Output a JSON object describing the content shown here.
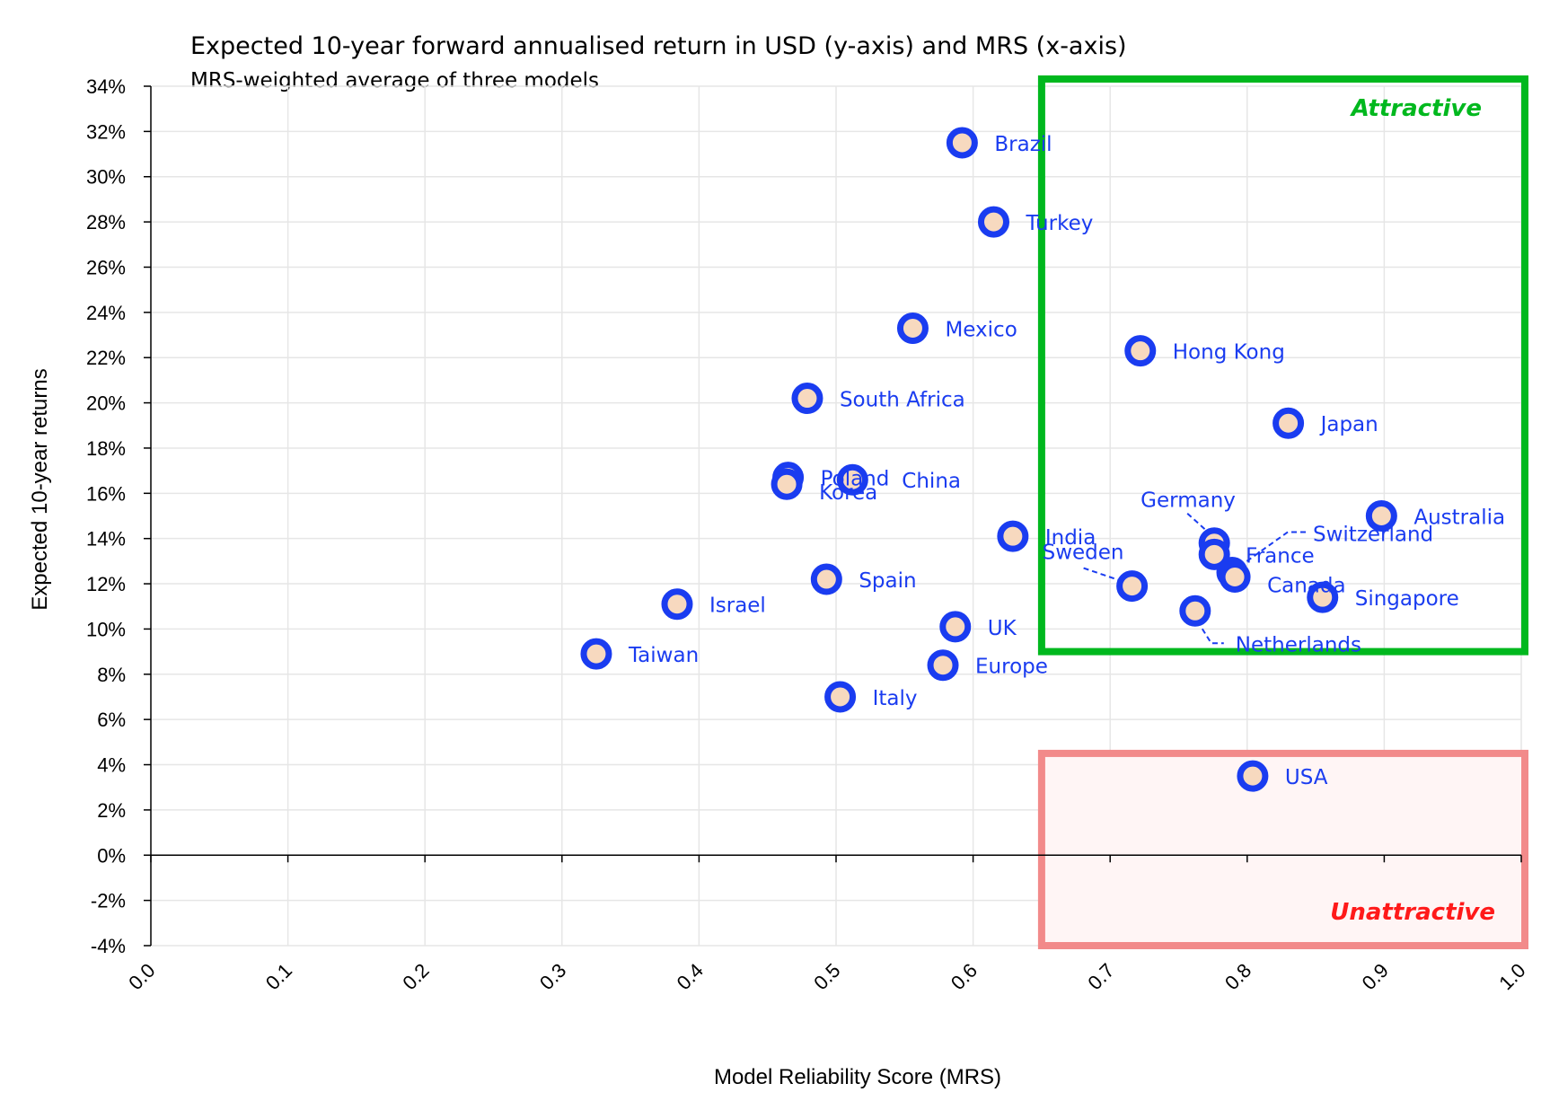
{
  "chart_data": {
    "type": "scatter",
    "title": "Expected 10-year forward annualised return in USD (y-axis) and MRS (x-axis)",
    "subtitle": "MRS-weighted average of three models",
    "xlabel": "Model Reliability Score (MRS)",
    "ylabel": "Expected 10-year returns",
    "xlim": [
      0.0,
      1.0
    ],
    "ylim": [
      -4,
      34
    ],
    "x_ticks": [
      "0.0",
      "0.1",
      "0.2",
      "0.3",
      "0.4",
      "0.5",
      "0.6",
      "0.7",
      "0.8",
      "0.9",
      "1.0"
    ],
    "y_ticks": [
      "34%",
      "32%",
      "30%",
      "28%",
      "26%",
      "24%",
      "22%",
      "20%",
      "18%",
      "16%",
      "14%",
      "12%",
      "10%",
      "8%",
      "6%",
      "4%",
      "2%",
      "0%",
      "-2%",
      "-4%"
    ],
    "grid": true,
    "colors": {
      "marker_edge": "#1a3cf0",
      "marker_fill": "#f7d9bf",
      "label": "#1a3cf0",
      "attractive": "#00b81e",
      "unattractive": "#f28a8a",
      "unattractive_text": "#ff1a1a"
    },
    "zones": [
      {
        "label": "Attractive",
        "x_range": [
          0.65,
          1.0
        ],
        "y_range": [
          9,
          34
        ]
      },
      {
        "label": "Unattractive",
        "x_range": [
          0.65,
          1.0
        ],
        "y_range": [
          -4,
          4.5
        ]
      }
    ],
    "points": [
      {
        "label": "Brazil",
        "x": 0.592,
        "y": 31.5
      },
      {
        "label": "Turkey",
        "x": 0.615,
        "y": 28.0
      },
      {
        "label": "Mexico",
        "x": 0.556,
        "y": 23.3
      },
      {
        "label": "Hong Kong",
        "x": 0.722,
        "y": 22.3
      },
      {
        "label": "South Africa",
        "x": 0.479,
        "y": 20.2
      },
      {
        "label": "Japan",
        "x": 0.83,
        "y": 19.1
      },
      {
        "label": "Poland",
        "x": 0.465,
        "y": 16.7
      },
      {
        "label": "Korea",
        "x": 0.464,
        "y": 16.4
      },
      {
        "label": "China",
        "x": 0.512,
        "y": 16.6
      },
      {
        "label": "Australia",
        "x": 0.898,
        "y": 15.0
      },
      {
        "label": "Germany",
        "x": 0.776,
        "y": 13.8
      },
      {
        "label": "India",
        "x": 0.629,
        "y": 14.1
      },
      {
        "label": "France",
        "x": 0.776,
        "y": 13.3
      },
      {
        "label": "Switzerland",
        "x": 0.789,
        "y": 12.5
      },
      {
        "label": "Canada",
        "x": 0.791,
        "y": 12.3
      },
      {
        "label": "Sweden",
        "x": 0.716,
        "y": 11.9
      },
      {
        "label": "Spain",
        "x": 0.493,
        "y": 12.2
      },
      {
        "label": "Singapore",
        "x": 0.855,
        "y": 11.4
      },
      {
        "label": "Israel",
        "x": 0.384,
        "y": 11.1
      },
      {
        "label": "Netherlands",
        "x": 0.762,
        "y": 10.8
      },
      {
        "label": "UK",
        "x": 0.587,
        "y": 10.1
      },
      {
        "label": "Taiwan",
        "x": 0.325,
        "y": 8.9
      },
      {
        "label": "Europe",
        "x": 0.578,
        "y": 8.4
      },
      {
        "label": "Italy",
        "x": 0.503,
        "y": 7.0
      },
      {
        "label": "USA",
        "x": 0.804,
        "y": 3.5
      }
    ]
  }
}
